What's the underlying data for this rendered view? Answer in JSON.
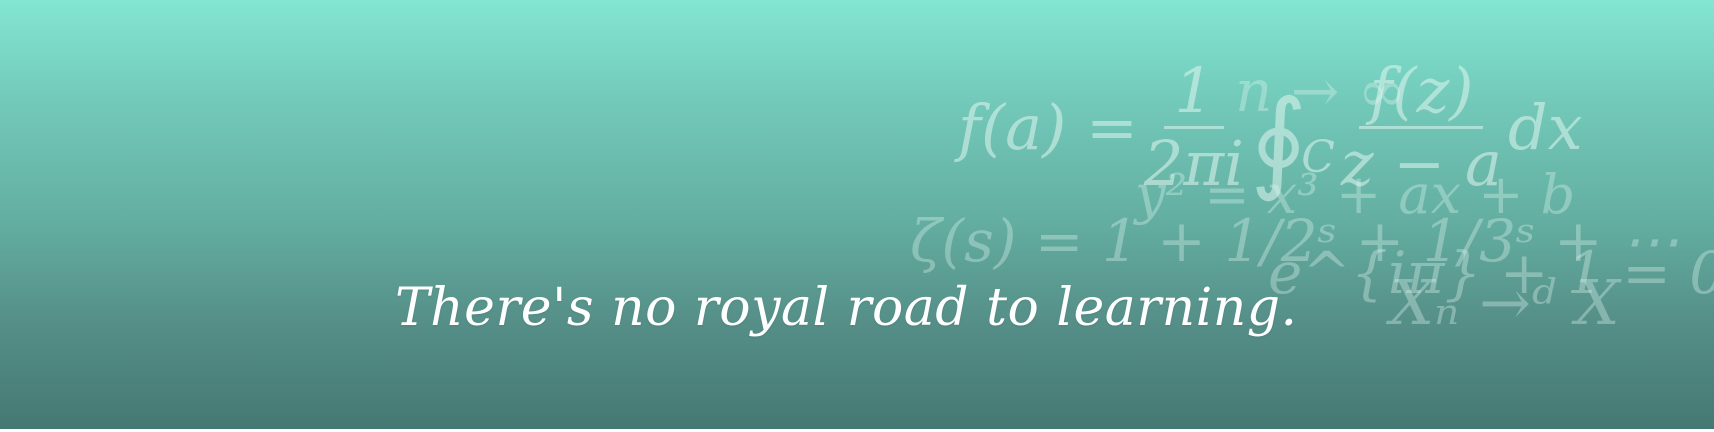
{
  "banner": {
    "quote": "There's no royal road to learning.",
    "background_top": "#82e6d2",
    "background_bottom": "#457873"
  },
  "formulas": {
    "cauchy": {
      "lhs": "f(a) =",
      "frac1_num": "1",
      "frac1_den": "2πi",
      "integral": "∮",
      "contour": "C",
      "frac2_num": "f(z)",
      "frac2_den": "z − a",
      "dx": "dx"
    },
    "limit": "n → ∞",
    "quadratic": "y² = x³ + ax + b",
    "zeta": "ζ(s) = 1 + 1/2ˢ + 1/3ˢ + ⋯",
    "euler": "e^{iπ} + 1 = 0",
    "convergence": "Xₙ →ᵈ X"
  }
}
